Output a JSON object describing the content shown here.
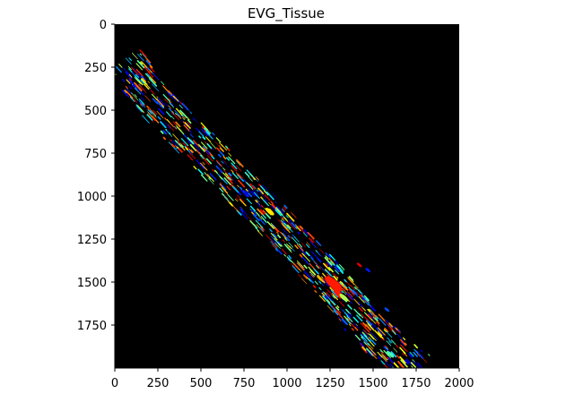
{
  "chart_data": {
    "type": "heatmap",
    "title": "EVG_Tissue",
    "xlabel": "",
    "ylabel": "",
    "xlim": [
      0,
      2000
    ],
    "ylim": [
      2000,
      0
    ],
    "x_ticks": [
      0,
      250,
      500,
      750,
      1000,
      1250,
      1500,
      1750,
      2000
    ],
    "y_ticks": [
      0,
      250,
      500,
      750,
      1000,
      1250,
      1500,
      1750
    ],
    "x_tick_labels": [
      "0",
      "250",
      "500",
      "750",
      "1000",
      "1250",
      "1500",
      "1750",
      "2000"
    ],
    "y_tick_labels": [
      "0",
      "250",
      "500",
      "750",
      "1000",
      "1250",
      "1500",
      "1750"
    ],
    "background_color": "#000000",
    "colormap": "jet",
    "grid": false,
    "legend": "none",
    "structure_path": [
      {
        "x": 60,
        "y": 210
      },
      {
        "x": 200,
        "y": 420
      },
      {
        "x": 400,
        "y": 620
      },
      {
        "x": 600,
        "y": 820
      },
      {
        "x": 800,
        "y": 1020
      },
      {
        "x": 1000,
        "y": 1220
      },
      {
        "x": 1200,
        "y": 1440
      },
      {
        "x": 1350,
        "y": 1620
      },
      {
        "x": 1500,
        "y": 1800
      },
      {
        "x": 1750,
        "y": 2000
      }
    ],
    "feature_spots": [
      {
        "x": 1270,
        "y": 1510,
        "value": 0.85,
        "size": 70
      },
      {
        "x": 1300,
        "y": 1570,
        "value": 0.85,
        "size": 40
      },
      {
        "x": 1330,
        "y": 1590,
        "value": 0.55,
        "size": 35
      },
      {
        "x": 900,
        "y": 1090,
        "value": 0.65,
        "size": 35
      },
      {
        "x": 1420,
        "y": 1400,
        "value": 0.9,
        "size": 20
      },
      {
        "x": 1470,
        "y": 1430,
        "value": 0.15,
        "size": 20
      },
      {
        "x": 1580,
        "y": 1660,
        "value": 0.2,
        "size": 20
      },
      {
        "x": 1600,
        "y": 1920,
        "value": 0.45,
        "size": 30
      }
    ]
  }
}
